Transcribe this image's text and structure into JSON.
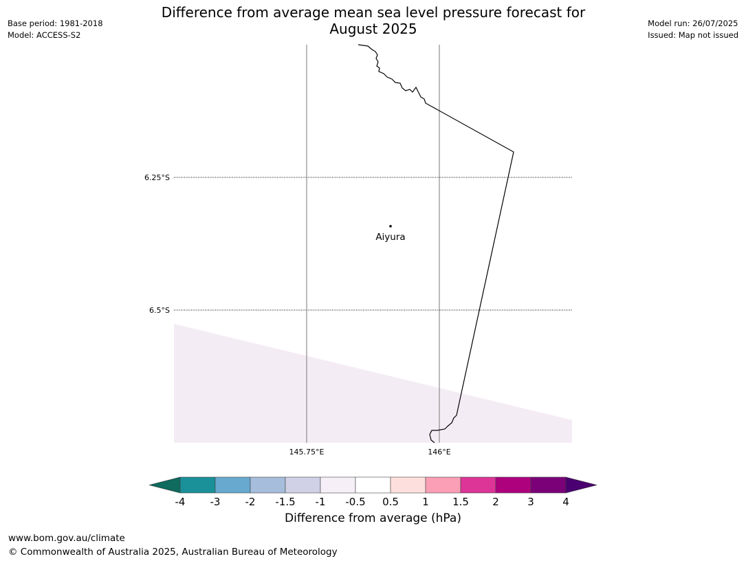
{
  "header": {
    "base_period": "Base period: 1981-2018",
    "model": "Model: ACCESS-S2",
    "title_line1": "Difference from average mean sea level pressure forecast for",
    "title_line2": "August 2025",
    "model_run": "Model run: 26/07/2025",
    "issued": "Issued: Map not issued"
  },
  "map": {
    "lat_labels": [
      "6.25°S",
      "6.5°S"
    ],
    "lon_labels": [
      "145.75°E",
      "146°E"
    ],
    "place": "Aiyura",
    "shading_color": "#f4ecf4",
    "coast_color": "#000000"
  },
  "colorbar": {
    "label": "Difference from average (hPa)",
    "ticks": [
      "-4",
      "-3",
      "-2",
      "-1.5",
      "-1",
      "-0.5",
      "0.5",
      "1",
      "1.5",
      "2",
      "3",
      "4"
    ],
    "low_extend_color": "#0e6b5e",
    "high_extend_color": "#4a0070",
    "colors": [
      "#1a9098",
      "#67a9cf",
      "#a6bddb",
      "#d0d1e6",
      "#f6eff7",
      "#ffffff",
      "#fde0dd",
      "#fa9fb5",
      "#dd3497",
      "#ae017e",
      "#7a0177"
    ]
  },
  "footer": {
    "url": "www.bom.gov.au/climate",
    "copyright": "© Commonwealth of Australia 2025, Australian Bureau of Meteorology"
  }
}
